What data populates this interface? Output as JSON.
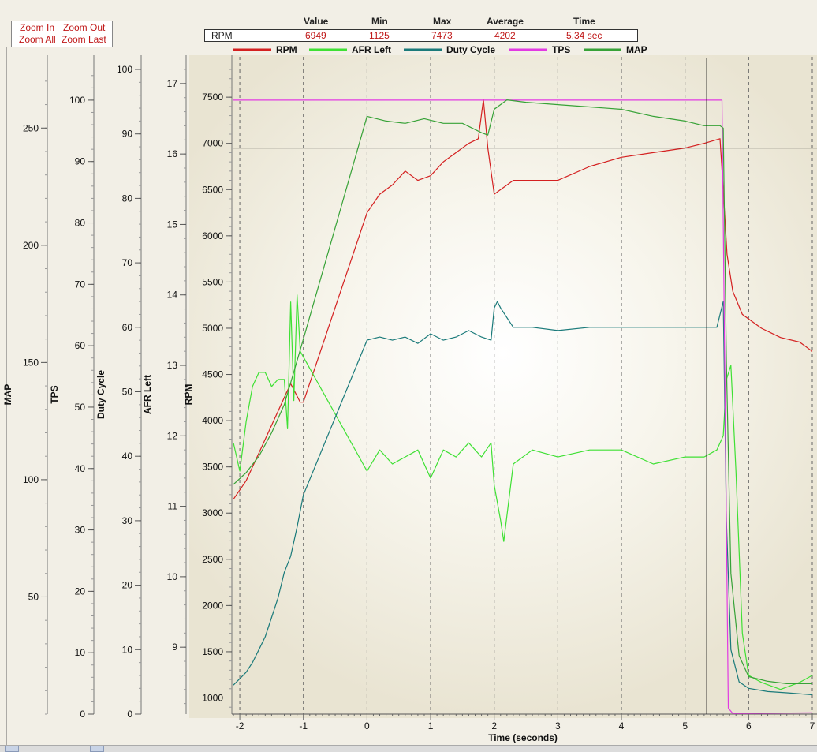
{
  "zoom": {
    "zoom_in": "Zoom In",
    "zoom_out": "Zoom Out",
    "zoom_all": "Zoom All",
    "zoom_last": "Zoom Last"
  },
  "stats": {
    "headers": {
      "value": "Value",
      "min": "Min",
      "max": "Max",
      "average": "Average",
      "time": "Time"
    },
    "channel": "RPM",
    "value": "6949",
    "min": "1125",
    "max": "7473",
    "average": "4202",
    "time": "5.34 sec"
  },
  "chart_data": {
    "type": "line",
    "xlabel": "Time (seconds)",
    "xlim": [
      -2.1,
      7.0
    ],
    "xticks": [
      -2,
      -1,
      0,
      1,
      2,
      3,
      4,
      5,
      6,
      7
    ],
    "cursor": {
      "x": 5.34,
      "y": 6949
    },
    "grid": "vertical dashed at each second",
    "legend_position": "top",
    "axes": [
      {
        "label": "MAP",
        "lim": [
          0,
          275
        ],
        "ticks": [
          50,
          100,
          150,
          200,
          250
        ]
      },
      {
        "label": "TPS",
        "lim": [
          0,
          105
        ],
        "ticks": [
          0,
          10,
          20,
          30,
          40,
          50,
          60,
          70,
          80,
          90,
          100
        ]
      },
      {
        "label": "Duty Cycle",
        "lim": [
          0,
          100
        ],
        "ticks": [
          0,
          10,
          20,
          30,
          40,
          50,
          60,
          70,
          80,
          90,
          100
        ]
      },
      {
        "label": "AFR Left",
        "lim": [
          8.05,
          17.2
        ],
        "ticks": [
          9,
          10,
          11,
          12,
          13,
          14,
          15,
          16,
          17
        ]
      },
      {
        "label": "RPM",
        "lim": [
          825,
          7800
        ],
        "ticks": [
          1000,
          1500,
          2000,
          2500,
          3000,
          3500,
          4000,
          4500,
          5000,
          5500,
          6000,
          6500,
          7000,
          7500
        ]
      }
    ],
    "series": [
      {
        "name": "RPM",
        "color": "#d42020",
        "axis": "RPM",
        "x": [
          -2.1,
          -1.9,
          -1.7,
          -1.5,
          -1.3,
          -1.2,
          -1.05,
          -1.0,
          0.0,
          0.05,
          0.2,
          0.4,
          0.6,
          0.8,
          1.0,
          1.2,
          1.4,
          1.6,
          1.75,
          1.83,
          1.9,
          2.0,
          2.3,
          2.6,
          3.0,
          3.5,
          4.0,
          4.5,
          5.0,
          5.3,
          5.55,
          5.6,
          5.66,
          5.75,
          5.9,
          6.2,
          6.5,
          6.8,
          7.0
        ],
        "y": [
          3150,
          3350,
          3650,
          3950,
          4250,
          4400,
          4200,
          4200,
          6250,
          6300,
          6450,
          6550,
          6700,
          6600,
          6650,
          6800,
          6900,
          7000,
          7050,
          7473,
          6950,
          6450,
          6600,
          6600,
          6600,
          6750,
          6850,
          6900,
          6950,
          7000,
          7050,
          6500,
          5800,
          5400,
          5150,
          5000,
          4900,
          4850,
          4750
        ]
      },
      {
        "name": "AFR Left",
        "color": "#3fe034",
        "axis": "AFR Left",
        "x": [
          -2.1,
          -2.0,
          -1.9,
          -1.8,
          -1.7,
          -1.6,
          -1.5,
          -1.4,
          -1.3,
          -1.25,
          -1.2,
          -1.15,
          -1.1,
          -1.05,
          0.0,
          0.2,
          0.4,
          0.6,
          0.8,
          1.0,
          1.2,
          1.4,
          1.6,
          1.8,
          1.95,
          2.0,
          2.1,
          2.15,
          2.3,
          2.6,
          3.0,
          3.5,
          4.0,
          4.5,
          5.0,
          5.3,
          5.5,
          5.6,
          5.65,
          5.72,
          5.8,
          5.9,
          6.0,
          6.2,
          6.5,
          6.8,
          7.0
        ],
        "y": [
          11.9,
          11.5,
          12.2,
          12.7,
          12.9,
          12.9,
          12.7,
          12.8,
          12.8,
          12.1,
          13.9,
          12.5,
          14.0,
          13.2,
          11.5,
          11.8,
          11.6,
          11.7,
          11.8,
          11.4,
          11.8,
          11.7,
          11.9,
          11.7,
          11.9,
          11.3,
          10.8,
          10.5,
          11.6,
          11.8,
          11.7,
          11.8,
          11.8,
          11.6,
          11.7,
          11.7,
          11.8,
          12.0,
          12.8,
          13.0,
          11.5,
          9.2,
          8.6,
          8.5,
          8.4,
          8.5,
          8.6
        ]
      },
      {
        "name": "Duty Cycle",
        "color": "#1a7a7a",
        "axis": "Duty Cycle",
        "x": [
          -2.1,
          -2.0,
          -1.9,
          -1.8,
          -1.7,
          -1.6,
          -1.5,
          -1.4,
          -1.3,
          -1.2,
          -1.1,
          -1.0,
          0.0,
          0.2,
          0.4,
          0.6,
          0.8,
          1.0,
          1.2,
          1.4,
          1.6,
          1.8,
          1.95,
          2.0,
          2.05,
          2.1,
          2.3,
          2.6,
          3.0,
          3.5,
          4.0,
          4.5,
          5.0,
          5.3,
          5.5,
          5.6,
          5.65,
          5.72,
          5.85,
          6.0,
          6.3,
          6.6,
          7.0
        ],
        "y": [
          4.5,
          5.5,
          6.5,
          8.0,
          10.0,
          12.0,
          15.0,
          18.0,
          22.0,
          24.5,
          29.0,
          34.0,
          58.0,
          58.5,
          58.0,
          58.5,
          57.5,
          59.0,
          58.0,
          58.5,
          59.5,
          58.5,
          58.0,
          63.0,
          64.0,
          63.0,
          60.0,
          60.0,
          59.5,
          60.0,
          60.0,
          60.0,
          60.0,
          60.0,
          60.0,
          64.0,
          30.0,
          10.0,
          5.0,
          4.0,
          3.5,
          3.3,
          3.0
        ]
      },
      {
        "name": "TPS",
        "color": "#e23ae2",
        "axis": "TPS",
        "x": [
          -2.1,
          5.58,
          5.68,
          5.75,
          7.0
        ],
        "y": [
          100,
          100,
          1.0,
          0.1,
          0.2
        ]
      },
      {
        "name": "MAP",
        "color": "#37a237",
        "axis": "MAP",
        "x": [
          -2.1,
          -1.9,
          -1.7,
          -1.5,
          -1.3,
          -1.0,
          0.0,
          0.3,
          0.6,
          0.9,
          1.2,
          1.5,
          1.8,
          1.9,
          2.0,
          2.2,
          2.5,
          3.0,
          3.5,
          4.0,
          4.5,
          5.0,
          5.3,
          5.55,
          5.6,
          5.65,
          5.72,
          5.85,
          6.0,
          6.3,
          6.6,
          7.0
        ],
        "y": [
          98,
          103,
          110,
          120,
          132,
          160,
          255,
          253,
          252,
          254,
          252,
          252,
          248,
          247,
          258,
          262,
          261,
          260,
          259,
          258,
          255,
          253,
          251,
          251,
          250,
          150,
          60,
          25,
          16,
          14,
          13,
          13
        ]
      }
    ]
  }
}
